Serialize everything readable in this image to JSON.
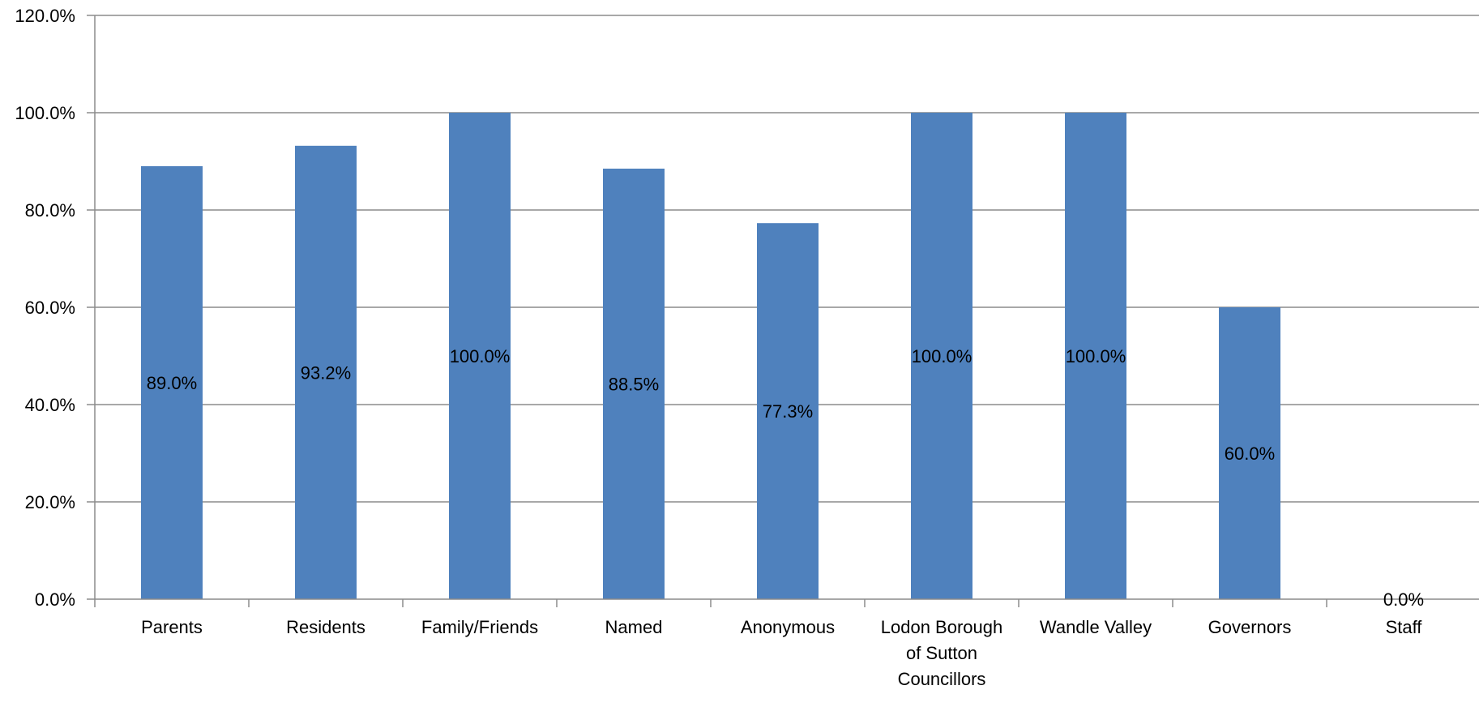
{
  "chart_data": {
    "type": "bar",
    "categories": [
      [
        "Parents"
      ],
      [
        "Residents"
      ],
      [
        "Family/Friends"
      ],
      [
        "Named"
      ],
      [
        "Anonymous"
      ],
      [
        "Lodon Borough",
        "of Sutton",
        "Councillors"
      ],
      [
        "Wandle Valley"
      ],
      [
        "Governors"
      ],
      [
        "Staff"
      ]
    ],
    "values": [
      89.0,
      93.2,
      100.0,
      88.5,
      77.3,
      100.0,
      100.0,
      60.0,
      0.0
    ],
    "data_labels": [
      "89.0%",
      "93.2%",
      "100.0%",
      "88.5%",
      "77.3%",
      "100.0%",
      "100.0%",
      "60.0%",
      "0.0%"
    ],
    "y_ticks": [
      "0.0%",
      "20.0%",
      "40.0%",
      "60.0%",
      "80.0%",
      "100.0%",
      "120.0%"
    ],
    "ylim": [
      0,
      120
    ],
    "grid": true,
    "legend": "none",
    "colors": {
      "bar": "#4f81bd",
      "grid": "#8c8c8c",
      "axis": "#8c8c8c"
    }
  }
}
